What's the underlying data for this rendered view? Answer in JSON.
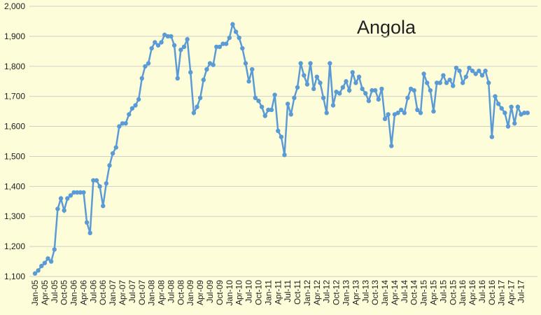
{
  "chart_data": {
    "type": "line",
    "title": "Angola",
    "categories": [
      "Jan-05",
      null,
      null,
      "Apr-05",
      null,
      null,
      "Jul-05",
      null,
      null,
      "Oct-05",
      null,
      null,
      "Jan-06",
      null,
      null,
      "Apr-06",
      null,
      null,
      "Jul-06",
      null,
      null,
      "Oct-06",
      null,
      null,
      "Jan-07",
      null,
      null,
      "Apr-07",
      null,
      null,
      "Jul-07",
      null,
      null,
      "Oct-07",
      null,
      null,
      "Jan-08",
      null,
      null,
      "Apr-08",
      null,
      null,
      "Jul-08",
      null,
      null,
      "Oct-08",
      null,
      null,
      "Jan-09",
      null,
      null,
      "Apr-09",
      null,
      null,
      "Jul-09",
      null,
      null,
      "Oct-09",
      null,
      null,
      "Jan-10",
      null,
      null,
      "Apr-10",
      null,
      null,
      "Jul-10",
      null,
      null,
      "Oct-10",
      null,
      null,
      "Jan-11",
      null,
      null,
      "Apr-11",
      null,
      null,
      "Jul-11",
      null,
      null,
      "Oct-11",
      null,
      null,
      "Jan-12",
      null,
      null,
      "Apr-12",
      null,
      null,
      "Jul-12",
      null,
      null,
      "Oct-12",
      null,
      null,
      "Jan-13",
      null,
      null,
      "Apr-13",
      null,
      null,
      "Jul-13",
      null,
      null,
      "Oct-13",
      null,
      null,
      "Jan-14",
      null,
      null,
      "Apr-14",
      null,
      null,
      "Jul-14",
      null,
      null,
      "Oct-14",
      null,
      null,
      "Jan-15",
      null,
      null,
      "Apr-15",
      null,
      null,
      "Jul-15",
      null,
      null,
      "Oct-15",
      null,
      null,
      "Jan-16",
      null,
      null,
      "Apr-16",
      null,
      null,
      "Jul-16",
      null,
      null,
      "Oct-16",
      null,
      null,
      "Jan-17",
      null,
      null,
      "Apr-17",
      null,
      null,
      "Jul-17",
      null,
      null
    ],
    "series": [
      {
        "color": "#5b9bd5",
        "values": [
          1110,
          1120,
          1135,
          1145,
          1160,
          1150,
          1190,
          1325,
          1360,
          1320,
          1360,
          1370,
          1380,
          1380,
          1380,
          1380,
          1280,
          1245,
          1420,
          1420,
          1400,
          1335,
          1410,
          1470,
          1510,
          1530,
          1600,
          1610,
          1610,
          1640,
          1660,
          1670,
          1690,
          1760,
          1800,
          1810,
          1860,
          1880,
          1870,
          1880,
          1905,
          1900,
          1900,
          1870,
          1760,
          1855,
          1865,
          1890,
          1780,
          1645,
          1665,
          1695,
          1755,
          1790,
          1810,
          1805,
          1865,
          1865,
          1875,
          1875,
          1895,
          1940,
          1915,
          1895,
          1860,
          1810,
          1750,
          1790,
          1695,
          1685,
          1665,
          1635,
          1655,
          1655,
          1705,
          1585,
          1565,
          1505,
          1675,
          1640,
          1695,
          1730,
          1810,
          1770,
          1740,
          1810,
          1725,
          1765,
          1745,
          1695,
          1645,
          1810,
          1670,
          1715,
          1710,
          1730,
          1750,
          1720,
          1780,
          1745,
          1765,
          1725,
          1710,
          1685,
          1720,
          1720,
          1690,
          1725,
          1625,
          1640,
          1535,
          1640,
          1645,
          1655,
          1645,
          1695,
          1725,
          1720,
          1655,
          1645,
          1775,
          1745,
          1720,
          1650,
          1745,
          1745,
          1770,
          1745,
          1755,
          1735,
          1795,
          1785,
          1745,
          1765,
          1795,
          1785,
          1775,
          1785,
          1770,
          1785,
          1745,
          1565,
          1700,
          1675,
          1660,
          1645,
          1600,
          1665,
          1610,
          1665,
          1640,
          1645,
          1645
        ]
      }
    ],
    "ylim": [
      1100,
      2000
    ],
    "yticks": [
      {
        "value": 1100,
        "label": "1,100"
      },
      {
        "value": 1200,
        "label": "1,200"
      },
      {
        "value": 1300,
        "label": "1,300"
      },
      {
        "value": 1400,
        "label": "1,400"
      },
      {
        "value": 1500,
        "label": "1,500"
      },
      {
        "value": 1600,
        "label": "1,600"
      },
      {
        "value": 1700,
        "label": "1,700"
      },
      {
        "value": 1800,
        "label": "1,800"
      },
      {
        "value": 1900,
        "label": "1,900"
      },
      {
        "value": 2000,
        "label": "2,000"
      }
    ],
    "grid": true
  }
}
